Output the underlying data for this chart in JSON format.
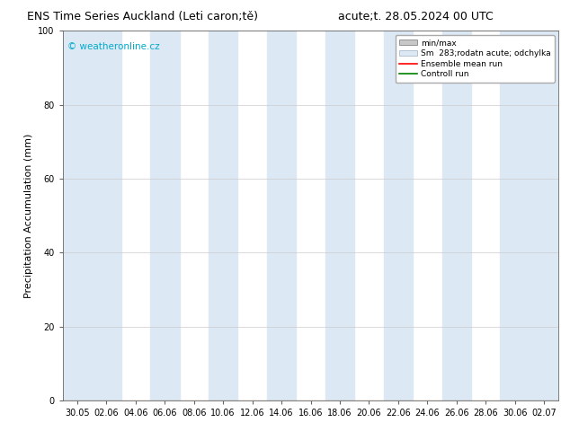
{
  "title_left": "ENS Time Series Auckland (Leti caron;tě)",
  "title_right": "acute;t. 28.05.2024 00 UTC",
  "ylabel": "Precipitation Accumulation (mm)",
  "watermark": "© weatheronline.cz",
  "watermark_color": "#00aacc",
  "ylim": [
    0,
    100
  ],
  "yticks": [
    0,
    20,
    40,
    60,
    80,
    100
  ],
  "x_tick_labels": [
    "30.05",
    "02.06",
    "04.06",
    "06.06",
    "08.06",
    "10.06",
    "12.06",
    "14.06",
    "16.06",
    "18.06",
    "20.06",
    "22.06",
    "24.06",
    "26.06",
    "28.06",
    "30.06",
    "02.07"
  ],
  "background_color": "#ffffff",
  "plot_bg_color": "#ffffff",
  "band_color": "#dce9f5",
  "band_positions": [
    1,
    3,
    5,
    7,
    9,
    11,
    13,
    15
  ],
  "legend_entries": [
    "min/max",
    "Sm  283;rodatn acute; odchylka",
    "Ensemble mean run",
    "Controll run"
  ],
  "title_fontsize": 9,
  "axis_label_fontsize": 8,
  "tick_fontsize": 7
}
